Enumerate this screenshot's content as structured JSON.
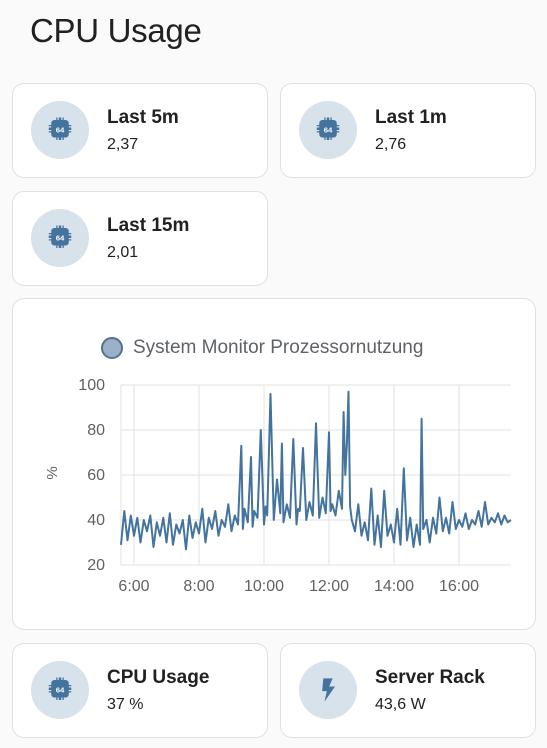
{
  "page": {
    "title": "CPU Usage"
  },
  "tiles": [
    {
      "name": "Last 5m",
      "value": "2,37",
      "icon": "cpu-64-icon"
    },
    {
      "name": "Last 1m",
      "value": "2,76",
      "icon": "cpu-64-icon"
    },
    {
      "name": "Last 15m",
      "value": "2,01",
      "icon": "cpu-64-icon"
    },
    {
      "name": "CPU Usage",
      "value": "37 %",
      "icon": "cpu-64-icon"
    },
    {
      "name": "Server Rack",
      "value": "43,6 W",
      "icon": "lightning-bolt-icon"
    }
  ],
  "colors": {
    "accent": "#44739e",
    "badge_bg": "#d8e2eb",
    "legend_fill": "#9bb1c8"
  },
  "chart_data": {
    "type": "line",
    "title": "",
    "legend": [
      "System Monitor Prozessornutzung"
    ],
    "legend_position": "top",
    "ylabel": "%",
    "xlabel": "",
    "ylim": [
      20,
      100
    ],
    "yticks": [
      "100",
      "80",
      "60",
      "40",
      "20"
    ],
    "xticks": [
      "6:00",
      "8:00",
      "10:00",
      "12:00",
      "14:00",
      "16:00"
    ],
    "x_range_hours": [
      5.6,
      17.6
    ],
    "grid": true,
    "series": [
      {
        "name": "System Monitor Prozessornutzung",
        "color": "#44739e",
        "x": [
          5.6,
          5.7,
          5.8,
          5.9,
          6.0,
          6.1,
          6.2,
          6.3,
          6.4,
          6.5,
          6.6,
          6.7,
          6.8,
          6.9,
          7.0,
          7.1,
          7.2,
          7.3,
          7.4,
          7.5,
          7.6,
          7.7,
          7.8,
          7.9,
          8.0,
          8.1,
          8.2,
          8.3,
          8.4,
          8.5,
          8.6,
          8.7,
          8.8,
          8.9,
          9.0,
          9.1,
          9.2,
          9.3,
          9.35,
          9.4,
          9.5,
          9.6,
          9.65,
          9.7,
          9.8,
          9.9,
          10.0,
          10.05,
          10.1,
          10.2,
          10.3,
          10.4,
          10.5,
          10.55,
          10.6,
          10.7,
          10.8,
          10.9,
          11.0,
          11.05,
          11.1,
          11.2,
          11.3,
          11.4,
          11.5,
          11.6,
          11.7,
          11.8,
          11.9,
          12.0,
          12.05,
          12.1,
          12.2,
          12.3,
          12.4,
          12.45,
          12.5,
          12.55,
          12.6,
          12.65,
          12.7,
          12.8,
          12.9,
          13.0,
          13.1,
          13.2,
          13.3,
          13.4,
          13.5,
          13.6,
          13.7,
          13.8,
          13.9,
          14.0,
          14.1,
          14.2,
          14.3,
          14.4,
          14.5,
          14.6,
          14.7,
          14.8,
          14.85,
          14.9,
          15.0,
          15.1,
          15.2,
          15.3,
          15.4,
          15.5,
          15.6,
          15.7,
          15.8,
          15.9,
          16.0,
          16.1,
          16.2,
          16.3,
          16.4,
          16.5,
          16.6,
          16.7,
          16.8,
          16.9,
          17.0,
          17.1,
          17.2,
          17.3,
          17.4,
          17.5,
          17.6
        ],
        "y": [
          29,
          44,
          31,
          42,
          33,
          41,
          30,
          40,
          35,
          42,
          28,
          39,
          33,
          41,
          30,
          43,
          29,
          38,
          34,
          40,
          27,
          42,
          32,
          39,
          34,
          45,
          30,
          41,
          36,
          44,
          33,
          40,
          37,
          47,
          35,
          42,
          38,
          73,
          36,
          45,
          39,
          68,
          37,
          44,
          41,
          80,
          38,
          46,
          42,
          96,
          40,
          58,
          43,
          74,
          39,
          47,
          41,
          76,
          38,
          45,
          44,
          72,
          40,
          48,
          42,
          83,
          41,
          50,
          43,
          79,
          44,
          47,
          42,
          53,
          45,
          88,
          60,
          74,
          97,
          46,
          40,
          35,
          47,
          33,
          39,
          31,
          54,
          29,
          42,
          28,
          53,
          33,
          38,
          30,
          45,
          29,
          63,
          31,
          41,
          28,
          38,
          29,
          85,
          36,
          40,
          30,
          41,
          34,
          50,
          35,
          41,
          34,
          48,
          36,
          40,
          37,
          43,
          36,
          40,
          38,
          44,
          37,
          48,
          38,
          41,
          39,
          43,
          38,
          42,
          39,
          40
        ]
      }
    ]
  }
}
